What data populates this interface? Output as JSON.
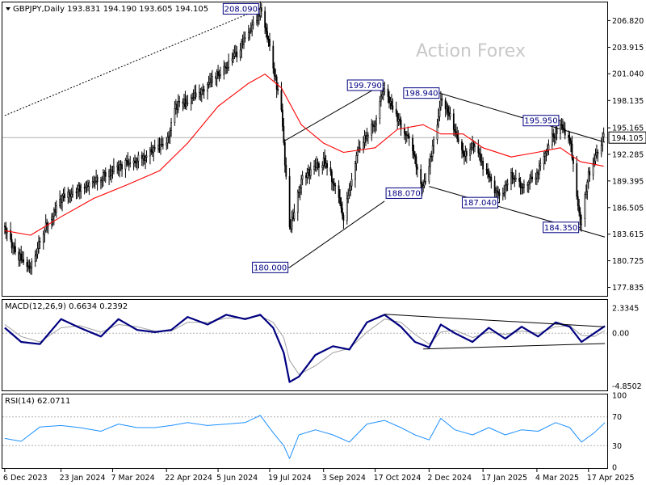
{
  "chart_data": [
    {
      "type": "candlestick",
      "header": "GBPJPY,Daily  193.831 194.190 193.605 194.105",
      "watermark": "Action Forex",
      "ylim": [
        177.0,
        208.7
      ],
      "y_ticks": [
        "206.820",
        "203.915",
        "201.040",
        "198.135",
        "195.165",
        "192.285",
        "189.395",
        "186.505",
        "183.615",
        "180.725",
        "177.835"
      ],
      "y_tick_values": [
        206.82,
        203.915,
        201.04,
        198.135,
        195.165,
        192.285,
        189.395,
        186.505,
        183.615,
        180.725,
        177.835
      ],
      "current_price": "194.105",
      "current_value": 194.105,
      "annotations": [
        {
          "text": "208.090",
          "value": 208.09,
          "date": "2024-07-11"
        },
        {
          "text": "199.790",
          "value": 199.79,
          "date": "2024-10-25"
        },
        {
          "text": "198.940",
          "value": 198.94,
          "date": "2024-12-12"
        },
        {
          "text": "195.950",
          "value": 195.95,
          "date": "2025-03-24"
        },
        {
          "text": "188.070",
          "value": 188.07,
          "date": "2024-11-27"
        },
        {
          "text": "187.040",
          "value": 187.04,
          "date": "2025-01-31"
        },
        {
          "text": "184.350",
          "value": 184.35,
          "date": "2025-04-10"
        },
        {
          "text": "180.000",
          "value": 180.0,
          "date": "2024-08-05"
        }
      ],
      "series": [
        {
          "name": "price (approx. daily close)",
          "x": [
            "2023-12-06",
            "2023-12-15",
            "2023-12-28",
            "2024-01-10",
            "2024-01-23",
            "2024-02-05",
            "2024-02-20",
            "2024-03-07",
            "2024-03-20",
            "2024-04-03",
            "2024-04-16",
            "2024-04-22",
            "2024-04-29",
            "2024-05-10",
            "2024-05-24",
            "2024-06-05",
            "2024-06-20",
            "2024-07-01",
            "2024-07-11",
            "2024-07-19",
            "2024-07-29",
            "2024-08-05",
            "2024-08-15",
            "2024-08-27",
            "2024-09-03",
            "2024-09-11",
            "2024-09-20",
            "2024-10-03",
            "2024-10-17",
            "2024-10-25",
            "2024-11-05",
            "2024-11-15",
            "2024-11-27",
            "2024-12-02",
            "2024-12-12",
            "2024-12-20",
            "2024-12-31",
            "2025-01-10",
            "2025-01-17",
            "2025-01-31",
            "2025-02-10",
            "2025-02-20",
            "2025-03-04",
            "2025-03-14",
            "2025-03-24",
            "2025-04-01",
            "2025-04-10",
            "2025-04-17",
            "2025-04-23",
            "2025-04-30"
          ],
          "values": [
            184.5,
            181.5,
            180.0,
            184.5,
            187.5,
            188.5,
            189.5,
            190.5,
            191.5,
            192.0,
            193.0,
            193.5,
            197.5,
            198.0,
            199.5,
            201.0,
            203.0,
            205.5,
            208.0,
            204.0,
            197.0,
            184.0,
            189.5,
            191.0,
            191.5,
            189.5,
            185.5,
            193.0,
            196.0,
            199.5,
            196.0,
            194.0,
            188.5,
            191.0,
            198.0,
            196.5,
            192.0,
            193.5,
            191.0,
            187.5,
            190.0,
            188.5,
            190.0,
            193.5,
            195.5,
            194.0,
            185.0,
            190.0,
            192.0,
            194.1
          ]
        },
        {
          "name": "moving average",
          "x": [
            "2023-12-06",
            "2023-12-28",
            "2024-01-23",
            "2024-02-20",
            "2024-03-20",
            "2024-04-16",
            "2024-05-10",
            "2024-06-05",
            "2024-07-01",
            "2024-07-15",
            "2024-07-29",
            "2024-08-15",
            "2024-09-03",
            "2024-09-20",
            "2024-10-17",
            "2024-11-05",
            "2024-11-27",
            "2024-12-12",
            "2024-12-31",
            "2025-01-17",
            "2025-02-10",
            "2025-03-04",
            "2025-03-24",
            "2025-04-10",
            "2025-04-30"
          ],
          "values": [
            184.0,
            183.5,
            185.5,
            187.5,
            189.0,
            190.5,
            193.5,
            197.5,
            200.0,
            201.0,
            199.5,
            195.5,
            193.5,
            192.5,
            193.0,
            195.0,
            195.5,
            194.5,
            194.5,
            193.0,
            192.0,
            192.5,
            193.0,
            191.5,
            191.0
          ]
        }
      ],
      "trendlines": [
        {
          "style": "dotted",
          "from": {
            "date": "2023-12-06",
            "value": 196.5
          },
          "to": {
            "date": "2024-07-11",
            "value": 208.1
          }
        },
        {
          "style": "solid",
          "from": {
            "date": "2024-07-31",
            "value": 193.7
          },
          "to": {
            "date": "2024-10-25",
            "value": 200.0
          }
        },
        {
          "style": "solid",
          "from": {
            "date": "2024-08-05",
            "value": 180.0
          },
          "to": {
            "date": "2024-10-25",
            "value": 187.2
          }
        },
        {
          "style": "solid",
          "from": {
            "date": "2024-12-12",
            "value": 198.9
          },
          "to": {
            "date": "2025-05-01",
            "value": 193.6
          }
        },
        {
          "style": "solid",
          "from": {
            "date": "2024-12-02",
            "value": 188.8
          },
          "to": {
            "date": "2025-05-01",
            "value": 183.3
          }
        }
      ]
    },
    {
      "type": "line",
      "header": "MACD(12,26,9) 0.6634 0.2392",
      "ylim": [
        -5.2,
        3.0
      ],
      "y_ticks": [
        "2.3345",
        "0.00",
        "-4.8502"
      ],
      "y_tick_values": [
        2.3345,
        0.0,
        -4.8502
      ],
      "series": [
        {
          "name": "MACD",
          "x": [
            "2023-12-06",
            "2023-12-20",
            "2024-01-05",
            "2024-01-23",
            "2024-02-08",
            "2024-02-26",
            "2024-03-12",
            "2024-03-28",
            "2024-04-12",
            "2024-04-26",
            "2024-05-10",
            "2024-05-27",
            "2024-06-12",
            "2024-06-28",
            "2024-07-11",
            "2024-07-22",
            "2024-07-31",
            "2024-08-05",
            "2024-08-13",
            "2024-08-27",
            "2024-09-11",
            "2024-09-25",
            "2024-10-10",
            "2024-10-25",
            "2024-11-08",
            "2024-11-20",
            "2024-12-02",
            "2024-12-12",
            "2024-12-24",
            "2025-01-08",
            "2025-01-22",
            "2025-02-05",
            "2025-02-19",
            "2025-03-05",
            "2025-03-20",
            "2025-04-01",
            "2025-04-11",
            "2025-04-22",
            "2025-05-01"
          ],
          "values": [
            0.5,
            -0.8,
            -1.0,
            1.3,
            0.5,
            -0.3,
            1.3,
            0.3,
            0.1,
            0.3,
            1.5,
            0.8,
            1.7,
            1.3,
            1.7,
            0.5,
            -1.8,
            -4.5,
            -4.0,
            -2.0,
            -1.2,
            -1.5,
            1.0,
            1.7,
            0.6,
            -0.8,
            -1.3,
            0.8,
            0.0,
            -0.8,
            0.5,
            -0.5,
            0.6,
            -0.3,
            1.0,
            0.6,
            -0.8,
            0.0,
            0.66
          ]
        },
        {
          "name": "Signal",
          "x": [
            "2023-12-06",
            "2023-12-20",
            "2024-01-05",
            "2024-01-23",
            "2024-02-08",
            "2024-02-26",
            "2024-03-12",
            "2024-03-28",
            "2024-04-12",
            "2024-04-26",
            "2024-05-10",
            "2024-05-27",
            "2024-06-12",
            "2024-06-28",
            "2024-07-11",
            "2024-07-22",
            "2024-07-31",
            "2024-08-05",
            "2024-08-13",
            "2024-08-27",
            "2024-09-11",
            "2024-09-25",
            "2024-10-10",
            "2024-10-25",
            "2024-11-08",
            "2024-11-20",
            "2024-12-02",
            "2024-12-12",
            "2024-12-24",
            "2025-01-08",
            "2025-01-22",
            "2025-02-05",
            "2025-02-19",
            "2025-03-05",
            "2025-03-20",
            "2025-04-01",
            "2025-04-11",
            "2025-04-22",
            "2025-05-01"
          ],
          "values": [
            0.8,
            -0.3,
            -0.8,
            0.5,
            0.7,
            0.1,
            0.8,
            0.6,
            0.2,
            0.2,
            1.0,
            1.0,
            1.4,
            1.4,
            1.6,
            1.0,
            -0.4,
            -2.5,
            -3.8,
            -3.0,
            -1.8,
            -1.4,
            0.1,
            1.3,
            1.0,
            -0.1,
            -1.0,
            0.1,
            0.3,
            -0.4,
            0.1,
            -0.1,
            0.2,
            0.0,
            0.6,
            0.7,
            -0.2,
            -0.3,
            0.24
          ]
        }
      ],
      "trendlines": [
        {
          "style": "solid",
          "from": {
            "date": "2024-10-25",
            "value": 1.75
          },
          "to": {
            "date": "2025-04-30",
            "value": 0.6
          }
        },
        {
          "style": "solid",
          "from": {
            "date": "2024-11-27",
            "value": -1.45
          },
          "to": {
            "date": "2025-05-01",
            "value": -0.95
          }
        }
      ]
    },
    {
      "type": "line",
      "header": "RSI(14) 62.0711",
      "ylim": [
        0,
        100
      ],
      "y_ticks": [
        "100",
        "70",
        "30",
        "0"
      ],
      "y_tick_values": [
        100,
        70,
        30,
        0
      ],
      "series": [
        {
          "name": "RSI",
          "x": [
            "2023-12-06",
            "2023-12-20",
            "2024-01-05",
            "2024-01-23",
            "2024-02-08",
            "2024-02-26",
            "2024-03-12",
            "2024-03-28",
            "2024-04-12",
            "2024-04-26",
            "2024-05-10",
            "2024-05-27",
            "2024-06-12",
            "2024-06-28",
            "2024-07-11",
            "2024-07-22",
            "2024-07-31",
            "2024-08-05",
            "2024-08-13",
            "2024-08-27",
            "2024-09-11",
            "2024-09-25",
            "2024-10-10",
            "2024-10-25",
            "2024-11-08",
            "2024-11-20",
            "2024-12-02",
            "2024-12-12",
            "2024-12-24",
            "2025-01-08",
            "2025-01-22",
            "2025-02-05",
            "2025-02-19",
            "2025-03-05",
            "2025-03-20",
            "2025-04-01",
            "2025-04-11",
            "2025-04-22",
            "2025-05-01"
          ],
          "values": [
            40,
            36,
            56,
            58,
            55,
            50,
            60,
            55,
            55,
            58,
            62,
            58,
            60,
            62,
            72,
            48,
            30,
            12,
            45,
            52,
            45,
            35,
            60,
            65,
            55,
            45,
            38,
            68,
            52,
            45,
            55,
            45,
            52,
            50,
            62,
            55,
            35,
            48,
            62
          ]
        }
      ]
    }
  ],
  "x_axis_ticks": [
    "6 Dec 2023",
    "23 Jan 2024",
    "7 Mar 2024",
    "22 Apr 2024",
    "5 Jun 2024",
    "19 Jul 2024",
    "3 Sep 2024",
    "17 Oct 2024",
    "2 Dec 2024",
    "17 Jan 2025",
    "4 Mar 2025",
    "17 Apr 2025"
  ],
  "x_axis_tick_dates": [
    "2023-12-06",
    "2024-01-23",
    "2024-03-07",
    "2024-04-22",
    "2024-06-05",
    "2024-07-19",
    "2024-09-03",
    "2024-10-17",
    "2024-12-02",
    "2025-01-17",
    "2025-03-04",
    "2025-04-17"
  ],
  "colors": {
    "candles": "#000000",
    "moving_average": "#ff0000",
    "macd": "#000080",
    "signal": "#a0a0a0",
    "rsi": "#1e90ff",
    "annotation_text": "#000080",
    "watermark": "#c8c8c8"
  }
}
